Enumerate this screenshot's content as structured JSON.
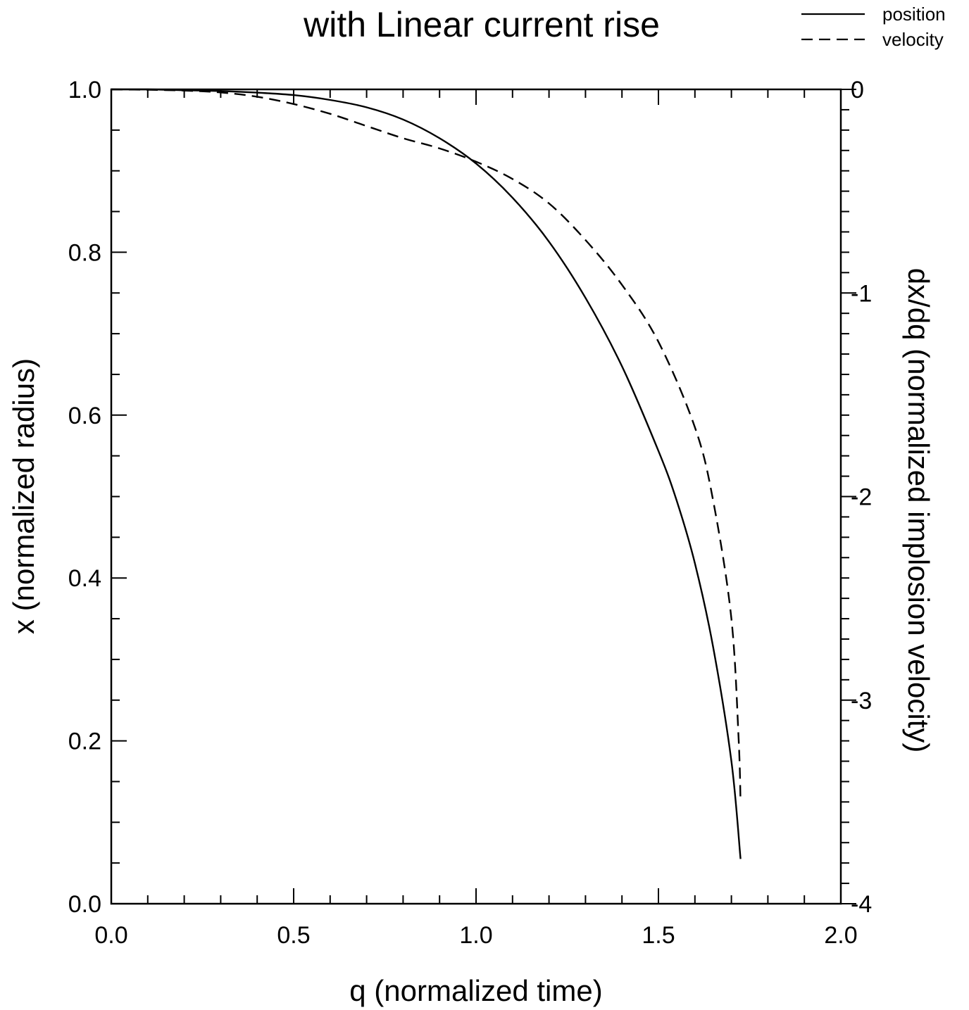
{
  "chart_data": {
    "type": "line",
    "title": "with Linear current rise",
    "xlabel": "q (normalized time)",
    "ylabel": "x (normalized radius)",
    "y2label": "dx/dq (normalized implosion velocity)",
    "xlim": [
      0,
      2
    ],
    "ylim": [
      0,
      1
    ],
    "y2lim": [
      -4,
      0
    ],
    "x_ticks": [
      {
        "value": 0,
        "label": "0.0"
      },
      {
        "value": 0.5,
        "label": "0.5"
      },
      {
        "value": 1,
        "label": "1.0"
      },
      {
        "value": 1.5,
        "label": "1.5"
      },
      {
        "value": 2,
        "label": "2.0"
      }
    ],
    "y_ticks": [
      {
        "value": 0,
        "label": "0.0"
      },
      {
        "value": 0.2,
        "label": "0.2"
      },
      {
        "value": 0.4,
        "label": "0.4"
      },
      {
        "value": 0.6,
        "label": "0.6"
      },
      {
        "value": 0.8,
        "label": "0.8"
      },
      {
        "value": 1,
        "label": "1.0"
      }
    ],
    "y2_ticks": [
      {
        "value": 0,
        "label": "0"
      },
      {
        "value": -1,
        "label": "-1"
      },
      {
        "value": -2,
        "label": "-2"
      },
      {
        "value": -3,
        "label": "-3"
      },
      {
        "value": -4,
        "label": "-4"
      }
    ],
    "legend_position": "top-right",
    "grid": false,
    "series": [
      {
        "name": "position",
        "axis": "left",
        "style": "solid",
        "x": [
          0,
          0.1,
          0.2,
          0.3,
          0.4,
          0.5,
          0.6,
          0.7,
          0.8,
          0.9,
          1.0,
          1.1,
          1.2,
          1.3,
          1.4,
          1.5,
          1.55,
          1.6,
          1.65,
          1.7,
          1.725
        ],
        "y": [
          1.0,
          1.0,
          0.999,
          0.998,
          0.996,
          0.993,
          0.987,
          0.978,
          0.963,
          0.94,
          0.909,
          0.867,
          0.813,
          0.744,
          0.66,
          0.556,
          0.495,
          0.418,
          0.315,
          0.175,
          0.055
        ]
      },
      {
        "name": "velocity",
        "axis": "right",
        "style": "dashed",
        "x": [
          0,
          0.1,
          0.2,
          0.3,
          0.4,
          0.5,
          0.6,
          0.7,
          0.8,
          0.9,
          1.0,
          1.1,
          1.2,
          1.3,
          1.4,
          1.5,
          1.6,
          1.65,
          1.7,
          1.72,
          1.725
        ],
        "y": [
          0,
          -0.002,
          -0.006,
          -0.015,
          -0.036,
          -0.072,
          -0.12,
          -0.18,
          -0.24,
          -0.29,
          -0.355,
          -0.44,
          -0.56,
          -0.74,
          -0.96,
          -1.24,
          -1.66,
          -2.02,
          -2.6,
          -3.2,
          -3.5
        ]
      }
    ]
  }
}
